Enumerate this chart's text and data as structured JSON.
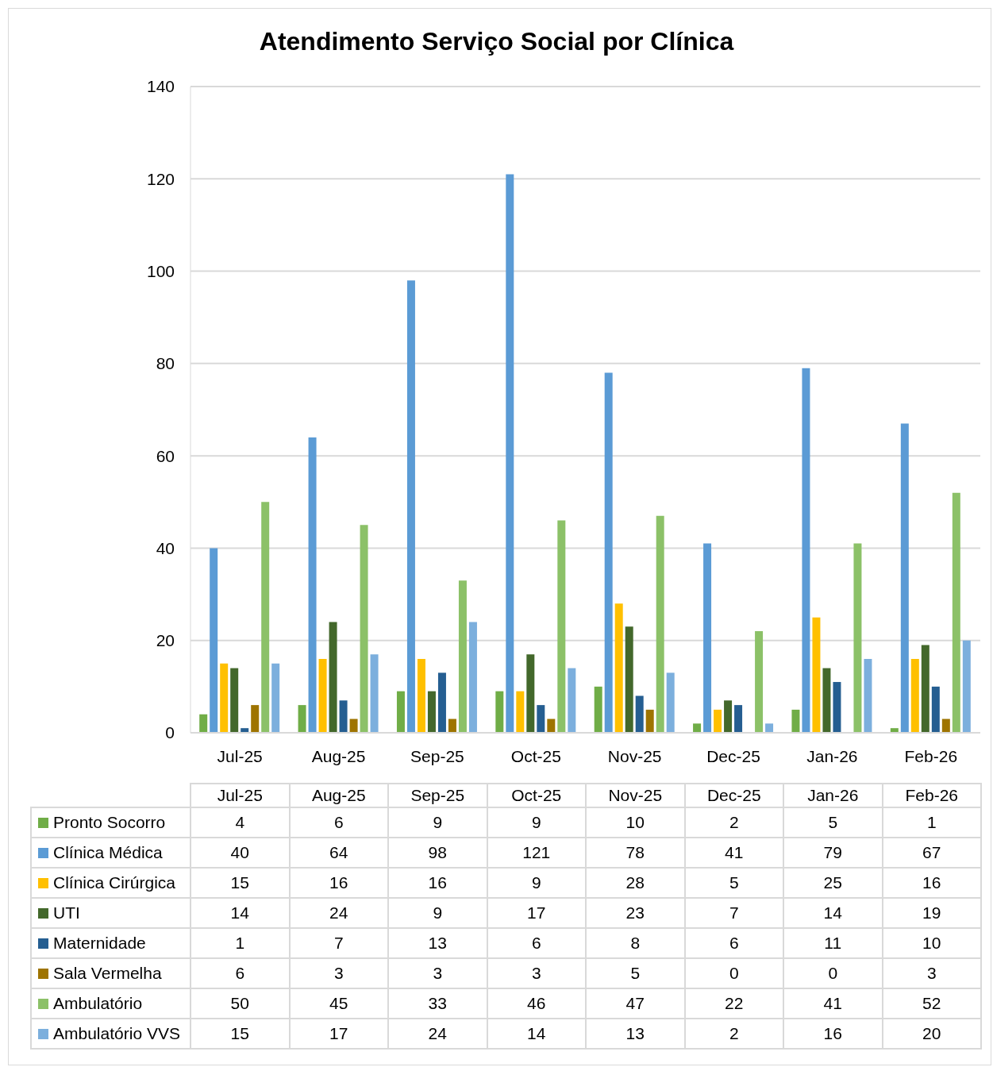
{
  "chart_data": {
    "type": "bar",
    "title": "Atendimento Serviço Social por Clínica",
    "categories": [
      "Jul-25",
      "Aug-25",
      "Sep-25",
      "Oct-25",
      "Nov-25",
      "Dec-25",
      "Jan-26",
      "Feb-26"
    ],
    "series": [
      {
        "name": "Pronto Socorro",
        "color": "#70ad47",
        "values": [
          4,
          6,
          9,
          9,
          10,
          2,
          5,
          1
        ]
      },
      {
        "name": "Clínica Médica",
        "color": "#5b9bd5",
        "values": [
          40,
          64,
          98,
          121,
          78,
          41,
          79,
          67
        ]
      },
      {
        "name": "Clínica Cirúrgica",
        "color": "#ffc000",
        "values": [
          15,
          16,
          16,
          9,
          28,
          5,
          25,
          16
        ]
      },
      {
        "name": "UTI",
        "color": "#43682b",
        "values": [
          14,
          24,
          9,
          17,
          23,
          7,
          14,
          19
        ]
      },
      {
        "name": "Maternidade",
        "color": "#255e91",
        "values": [
          1,
          7,
          13,
          6,
          8,
          6,
          11,
          10
        ]
      },
      {
        "name": "Sala Vermelha",
        "color": "#9e7400",
        "values": [
          6,
          3,
          3,
          3,
          5,
          0,
          0,
          3
        ]
      },
      {
        "name": "Ambulatório",
        "color": "#8cc168",
        "values": [
          50,
          45,
          33,
          46,
          47,
          22,
          41,
          52
        ]
      },
      {
        "name": "Ambulatório VVS",
        "color": "#7cafdd",
        "values": [
          15,
          17,
          24,
          14,
          13,
          2,
          16,
          20
        ]
      }
    ],
    "ylim": [
      0,
      140
    ],
    "yticks": [
      0,
      20,
      40,
      60,
      80,
      100,
      120,
      140
    ],
    "grid": "y",
    "legend": "bottom left",
    "data_labels": true
  }
}
